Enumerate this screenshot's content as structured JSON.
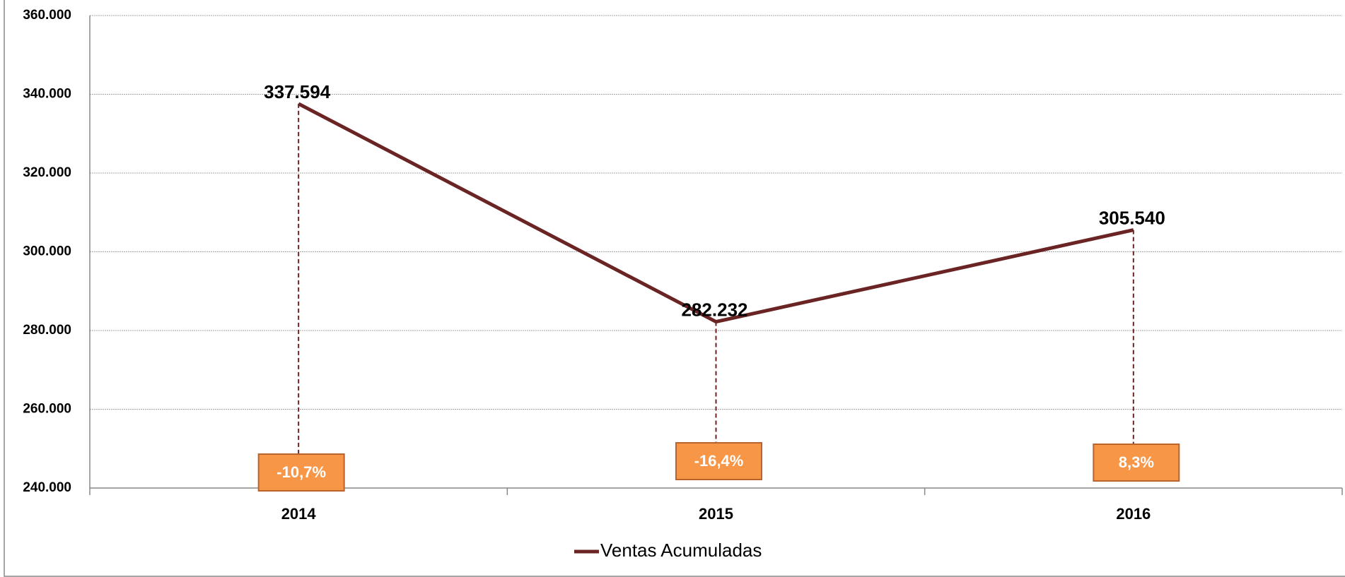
{
  "chart_data": {
    "type": "line",
    "categories": [
      "2014",
      "2015",
      "2016"
    ],
    "series": [
      {
        "name": "Ventas Acumuladas",
        "color": "#6b2424",
        "values": [
          337594,
          282232,
          305540
        ],
        "value_labels": [
          "337.594",
          "282.232",
          "305.540"
        ]
      }
    ],
    "annotations": [
      "-10,7%",
      "-16,4%",
      "8,3%"
    ],
    "annotation_color": "#f79646",
    "ylim": [
      240000,
      360000
    ],
    "yticks": [
      {
        "value": 240000,
        "label": "240.000"
      },
      {
        "value": 260000,
        "label": "260.000"
      },
      {
        "value": 280000,
        "label": "280.000"
      },
      {
        "value": 300000,
        "label": "300.000"
      },
      {
        "value": 320000,
        "label": "320.000"
      },
      {
        "value": 340000,
        "label": "340.000"
      },
      {
        "value": 360000,
        "label": "360.000"
      }
    ],
    "grid": true,
    "legend": "bottom"
  }
}
